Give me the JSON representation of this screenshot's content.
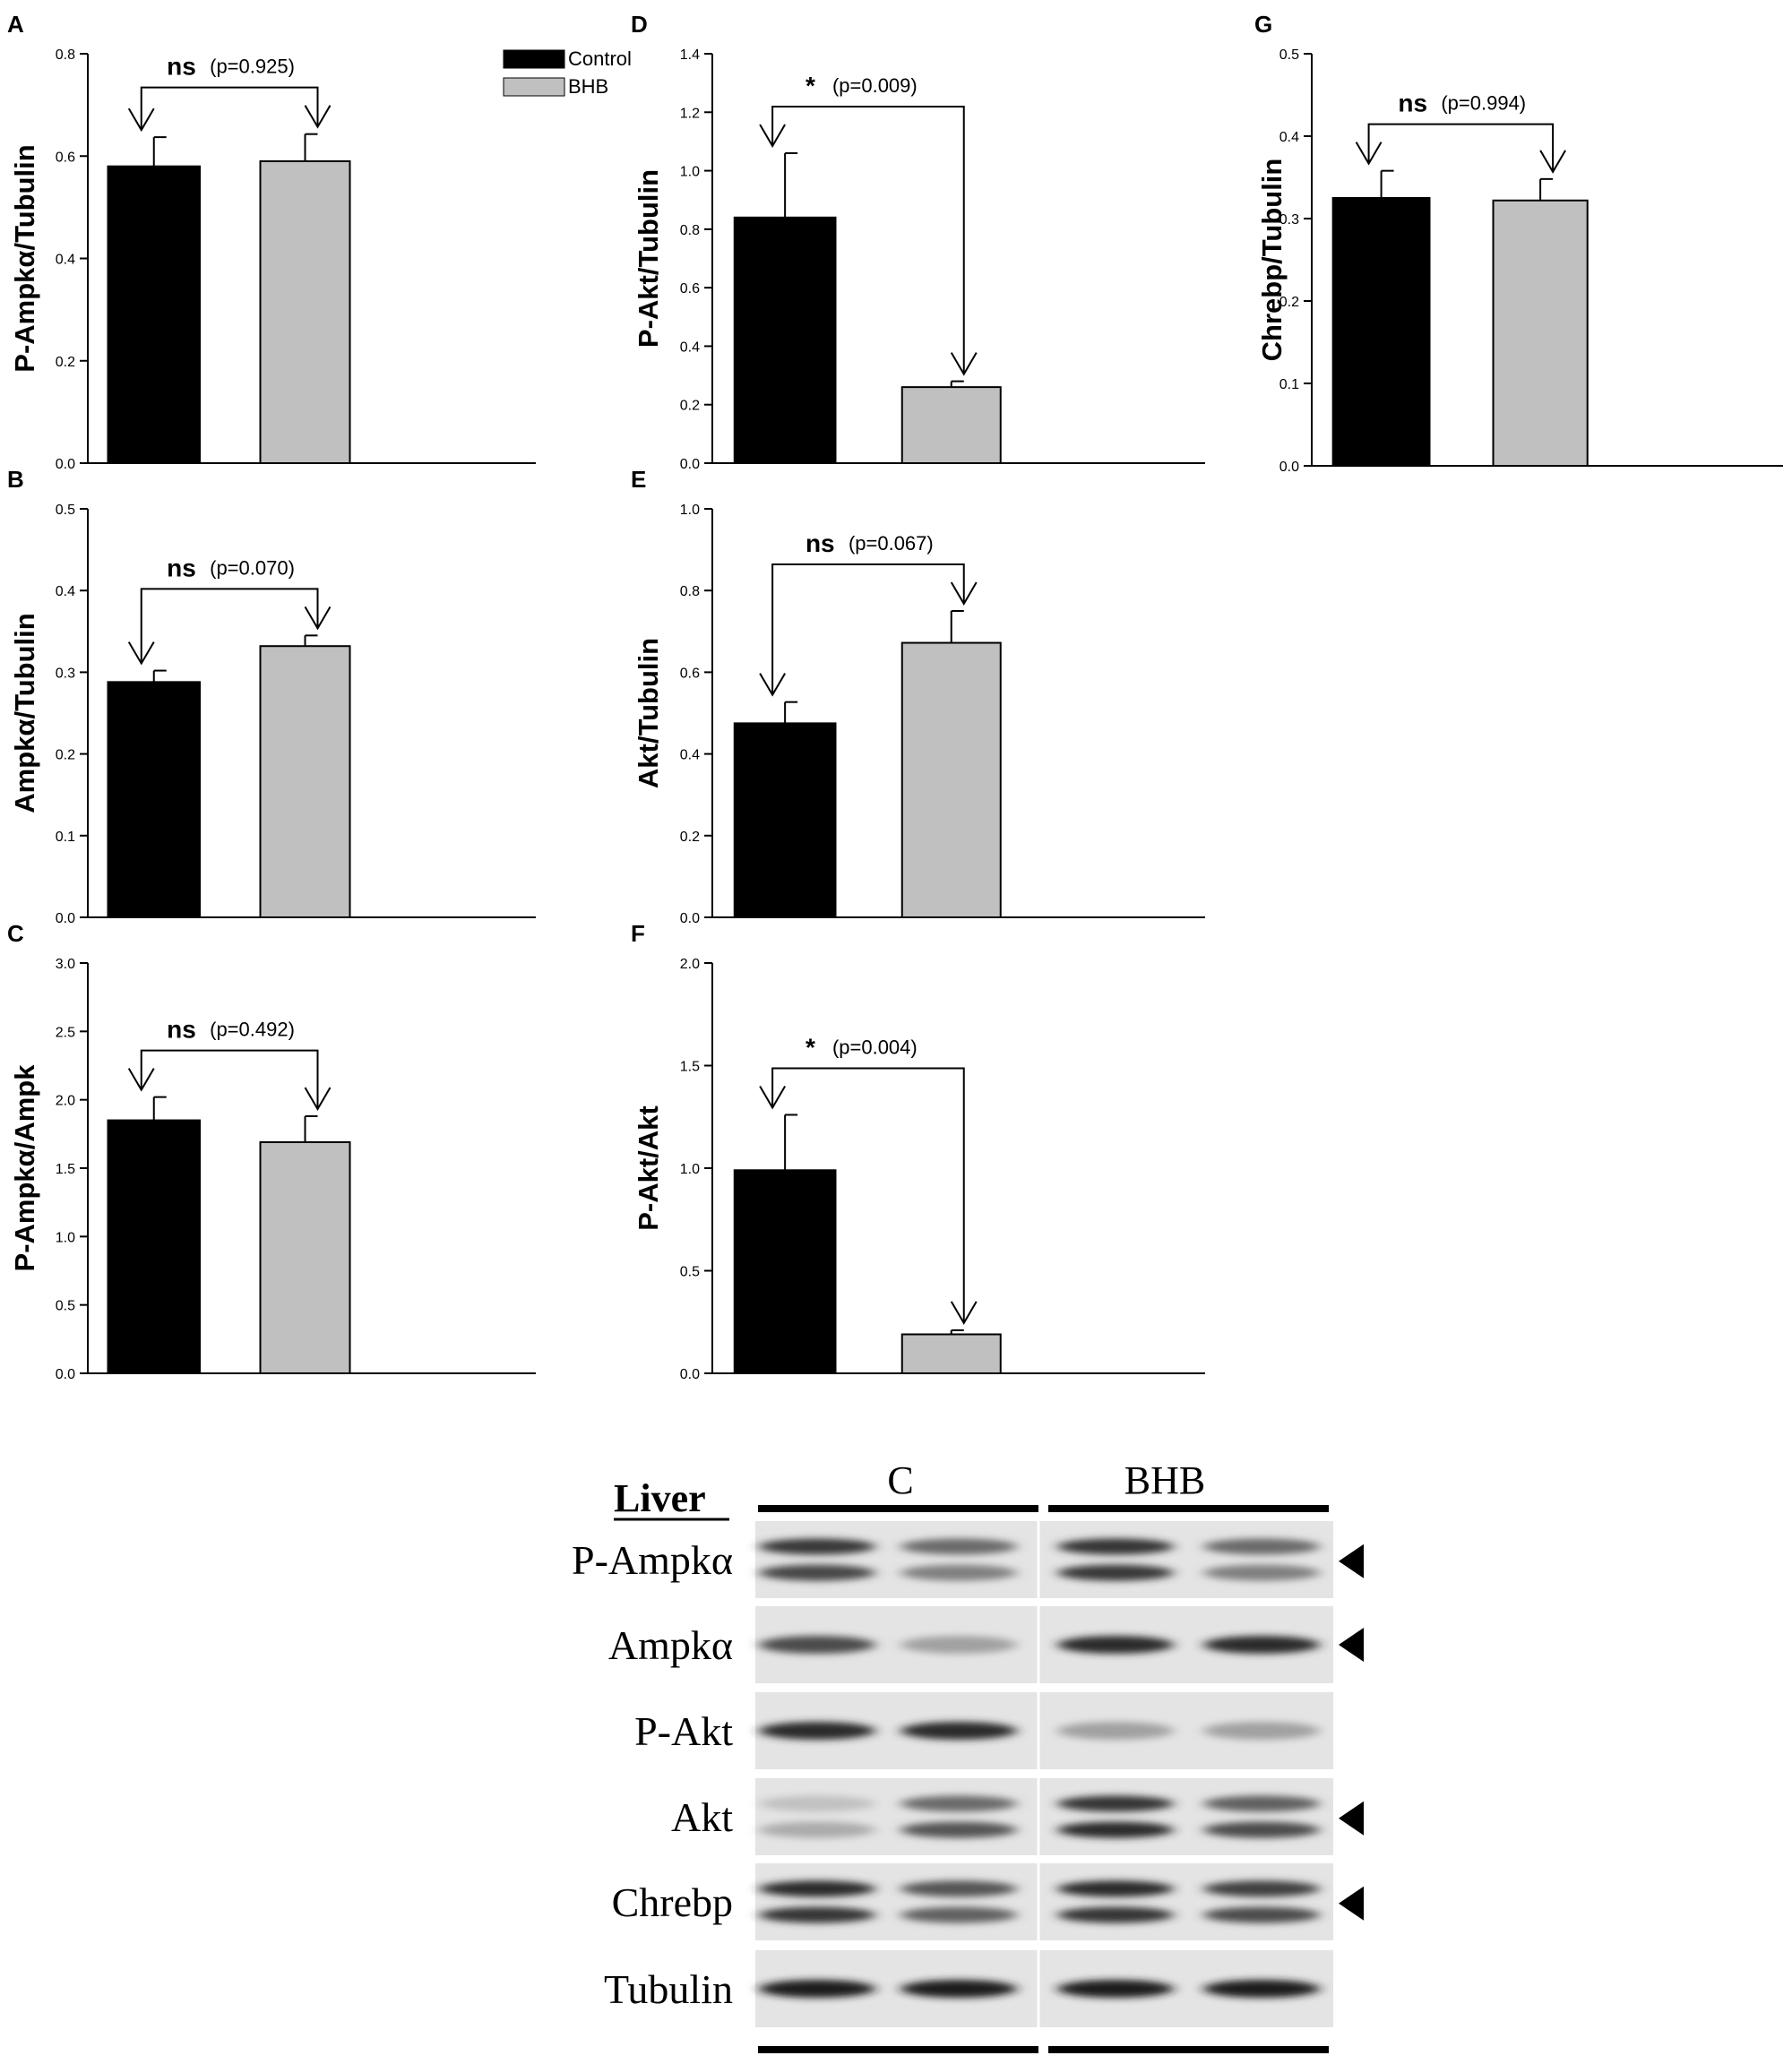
{
  "legend": {
    "items": [
      {
        "label": "Control",
        "color": "#000000"
      },
      {
        "label": "BHB",
        "color": "#c0c0c0"
      }
    ]
  },
  "chart_data": [
    {
      "panel": "A",
      "type": "bar",
      "categories": [
        "Control",
        "BHB"
      ],
      "values": [
        0.58,
        0.59
      ],
      "errors": [
        0.057,
        0.053
      ],
      "ylabel": "P-Ampkα/Tubulin",
      "ylim": [
        0,
        0.8
      ],
      "ticks": [
        0.0,
        0.2,
        0.4,
        0.6,
        0.8
      ],
      "tick_labels": [
        "0.0",
        "0.2",
        "0.4",
        "0.6",
        "0.8"
      ],
      "significance": {
        "mark": "ns",
        "p_text": "(p=0.925)"
      }
    },
    {
      "panel": "B",
      "type": "bar",
      "categories": [
        "Control",
        "BHB"
      ],
      "values": [
        0.288,
        0.332
      ],
      "errors": [
        0.014,
        0.013
      ],
      "ylabel": "Ampkα/Tubulin",
      "ylim": [
        0,
        0.5
      ],
      "ticks": [
        0.0,
        0.1,
        0.2,
        0.3,
        0.4,
        0.5
      ],
      "tick_labels": [
        "0.0",
        "0.1",
        "0.2",
        "0.3",
        "0.4",
        "0.5"
      ],
      "significance": {
        "mark": "ns",
        "p_text": "(p=0.070)"
      }
    },
    {
      "panel": "C",
      "type": "bar",
      "categories": [
        "Control",
        "BHB"
      ],
      "values": [
        1.85,
        1.69
      ],
      "errors": [
        0.17,
        0.19
      ],
      "ylabel": "P-Ampkα/Ampk",
      "ylim": [
        0,
        3.0
      ],
      "ticks": [
        0.0,
        0.5,
        1.0,
        1.5,
        2.0,
        2.5,
        3.0
      ],
      "tick_labels": [
        "0.0",
        "0.5",
        "1.0",
        "1.5",
        "2.0",
        "2.5",
        "3.0"
      ],
      "significance": {
        "mark": "ns",
        "p_text": "(p=0.492)"
      }
    },
    {
      "panel": "D",
      "type": "bar",
      "categories": [
        "Control",
        "BHB"
      ],
      "values": [
        0.84,
        0.26
      ],
      "errors": [
        0.22,
        0.02
      ],
      "ylabel": "P-Akt/Tubulin",
      "ylim": [
        0,
        1.4
      ],
      "ticks": [
        0.0,
        0.2,
        0.4,
        0.6,
        0.8,
        1.0,
        1.2,
        1.4
      ],
      "tick_labels": [
        "0.0",
        "0.2",
        "0.4",
        "0.6",
        "0.8",
        "1.0",
        "1.2",
        "1.4"
      ],
      "significance": {
        "mark": "*",
        "p_text": "(p=0.009)"
      }
    },
    {
      "panel": "E",
      "type": "bar",
      "categories": [
        "Control",
        "BHB"
      ],
      "values": [
        0.475,
        0.672
      ],
      "errors": [
        0.052,
        0.078
      ],
      "ylabel": "Akt/Tubulin",
      "ylim": [
        0,
        1.0
      ],
      "ticks": [
        0.0,
        0.2,
        0.4,
        0.6,
        0.8,
        1.0
      ],
      "tick_labels": [
        "0.0",
        "0.2",
        "0.4",
        "0.6",
        "0.8",
        "1.0"
      ],
      "significance": {
        "mark": "ns",
        "p_text": "(p=0.067)"
      }
    },
    {
      "panel": "F",
      "type": "bar",
      "categories": [
        "Control",
        "BHB"
      ],
      "values": [
        0.99,
        0.19
      ],
      "errors": [
        0.27,
        0.02
      ],
      "ylabel": "P-Akt/Akt",
      "ylim": [
        0,
        2.0
      ],
      "ticks": [
        0.0,
        0.5,
        1.0,
        1.5,
        2.0
      ],
      "tick_labels": [
        "0.0",
        "0.5",
        "1.0",
        "1.5",
        "2.0"
      ],
      "significance": {
        "mark": "*",
        "p_text": "(p=0.004)"
      }
    },
    {
      "panel": "G",
      "type": "bar",
      "categories": [
        "Control",
        "BHB"
      ],
      "values": [
        0.325,
        0.322
      ],
      "errors": [
        0.033,
        0.026
      ],
      "ylabel": "Chrebp/Tubulin",
      "ylim": [
        0,
        0.5
      ],
      "ticks": [
        0.0,
        0.1,
        0.2,
        0.3,
        0.4,
        0.5
      ],
      "tick_labels": [
        "0.0",
        "0.1",
        "0.2",
        "0.3",
        "0.4",
        "0.5"
      ],
      "significance": {
        "mark": "ns",
        "p_text": "(p=0.994)"
      }
    }
  ],
  "western_blot": {
    "title": "Liver",
    "groups": [
      "C",
      "BHB"
    ],
    "lanes_per_group": 2,
    "rows": [
      {
        "label": "P-Ampkα",
        "arrow": true,
        "bands": [
          [
            0.78,
            0.55,
            0.8,
            0.55
          ],
          [
            0.72,
            0.45,
            0.78,
            0.45
          ]
        ]
      },
      {
        "label": "Ampkα",
        "arrow": true,
        "bands": [
          [
            0.7,
            0.3,
            0.85,
            0.85
          ]
        ]
      },
      {
        "label": "P-Akt",
        "arrow": false,
        "bands": [
          [
            0.85,
            0.85,
            0.3,
            0.3
          ]
        ]
      },
      {
        "label": "Akt",
        "arrow": true,
        "bands": [
          [
            0.15,
            0.55,
            0.8,
            0.6
          ],
          [
            0.25,
            0.65,
            0.85,
            0.7
          ]
        ]
      },
      {
        "label": "Chrebp",
        "arrow": true,
        "bands": [
          [
            0.85,
            0.65,
            0.85,
            0.75
          ],
          [
            0.8,
            0.6,
            0.8,
            0.7
          ]
        ]
      },
      {
        "label": "Tubulin",
        "arrow": false,
        "bands": [
          [
            0.92,
            0.92,
            0.92,
            0.92
          ]
        ]
      }
    ]
  }
}
